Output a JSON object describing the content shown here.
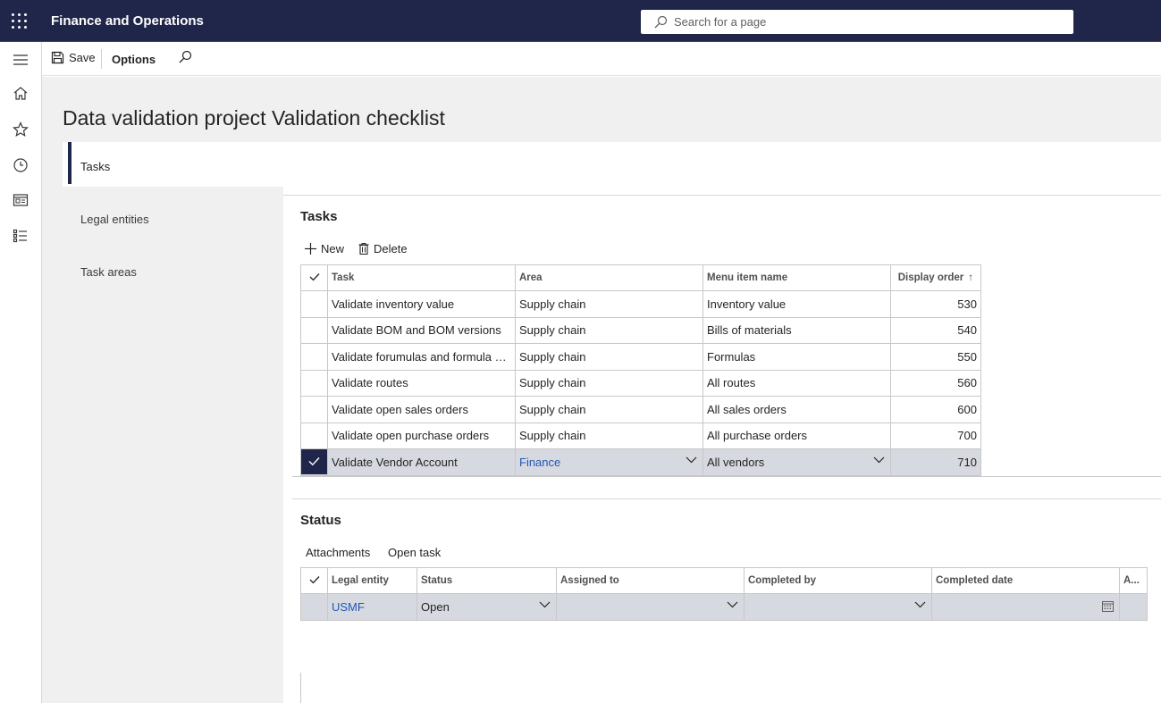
{
  "app": {
    "title": "Finance and Operations",
    "search_placeholder": "Search for a page",
    "brand_color": "#1f2649"
  },
  "nav": {
    "items": [
      {
        "name": "hamburger-menu-icon"
      },
      {
        "name": "home-icon"
      },
      {
        "name": "favorites-star-icon"
      },
      {
        "name": "recent-clock-icon"
      },
      {
        "name": "workspaces-icon"
      },
      {
        "name": "modules-list-icon"
      }
    ]
  },
  "actionpane": {
    "save_label": "Save",
    "options_label": "Options"
  },
  "page": {
    "title": "Data validation project Validation checklist"
  },
  "tabs": [
    {
      "label": "Tasks",
      "active": true
    },
    {
      "label": "Legal entities",
      "active": false
    },
    {
      "label": "Task areas",
      "active": false
    }
  ],
  "tasks": {
    "title": "Tasks",
    "new_label": "New",
    "delete_label": "Delete",
    "columns": [
      "Task",
      "Area",
      "Menu item name",
      "Display order"
    ],
    "sort_indicator": "↑",
    "rows": [
      {
        "task": "Validate inventory value",
        "area": "Supply chain",
        "menu": "Inventory value",
        "order": "530",
        "selected": false
      },
      {
        "task": "Validate BOM and BOM versions",
        "area": "Supply chain",
        "menu": "Bills of materials",
        "order": "540",
        "selected": false
      },
      {
        "task": "Validate forumulas and formula versions",
        "area": "Supply chain",
        "menu": "Formulas",
        "order": "550",
        "selected": false
      },
      {
        "task": "Validate routes",
        "area": "Supply chain",
        "menu": "All routes",
        "order": "560",
        "selected": false
      },
      {
        "task": "Validate open sales orders",
        "area": "Supply chain",
        "menu": "All sales orders",
        "order": "600",
        "selected": false
      },
      {
        "task": "Validate open purchase orders",
        "area": "Supply chain",
        "menu": "All purchase orders",
        "order": "700",
        "selected": false
      },
      {
        "task": "Validate Vendor Account",
        "area": "Finance",
        "menu": "All vendors",
        "order": "710",
        "selected": true
      }
    ]
  },
  "status": {
    "title": "Status",
    "attachments_label": "Attachments",
    "open_task_label": "Open task",
    "columns": [
      "Legal entity",
      "Status",
      "Assigned to",
      "Completed by",
      "Completed date",
      "A..."
    ],
    "rows": [
      {
        "legal_entity": "USMF",
        "status": "Open",
        "assigned_to": "",
        "completed_by": "",
        "completed_date": "",
        "a": ""
      }
    ]
  }
}
